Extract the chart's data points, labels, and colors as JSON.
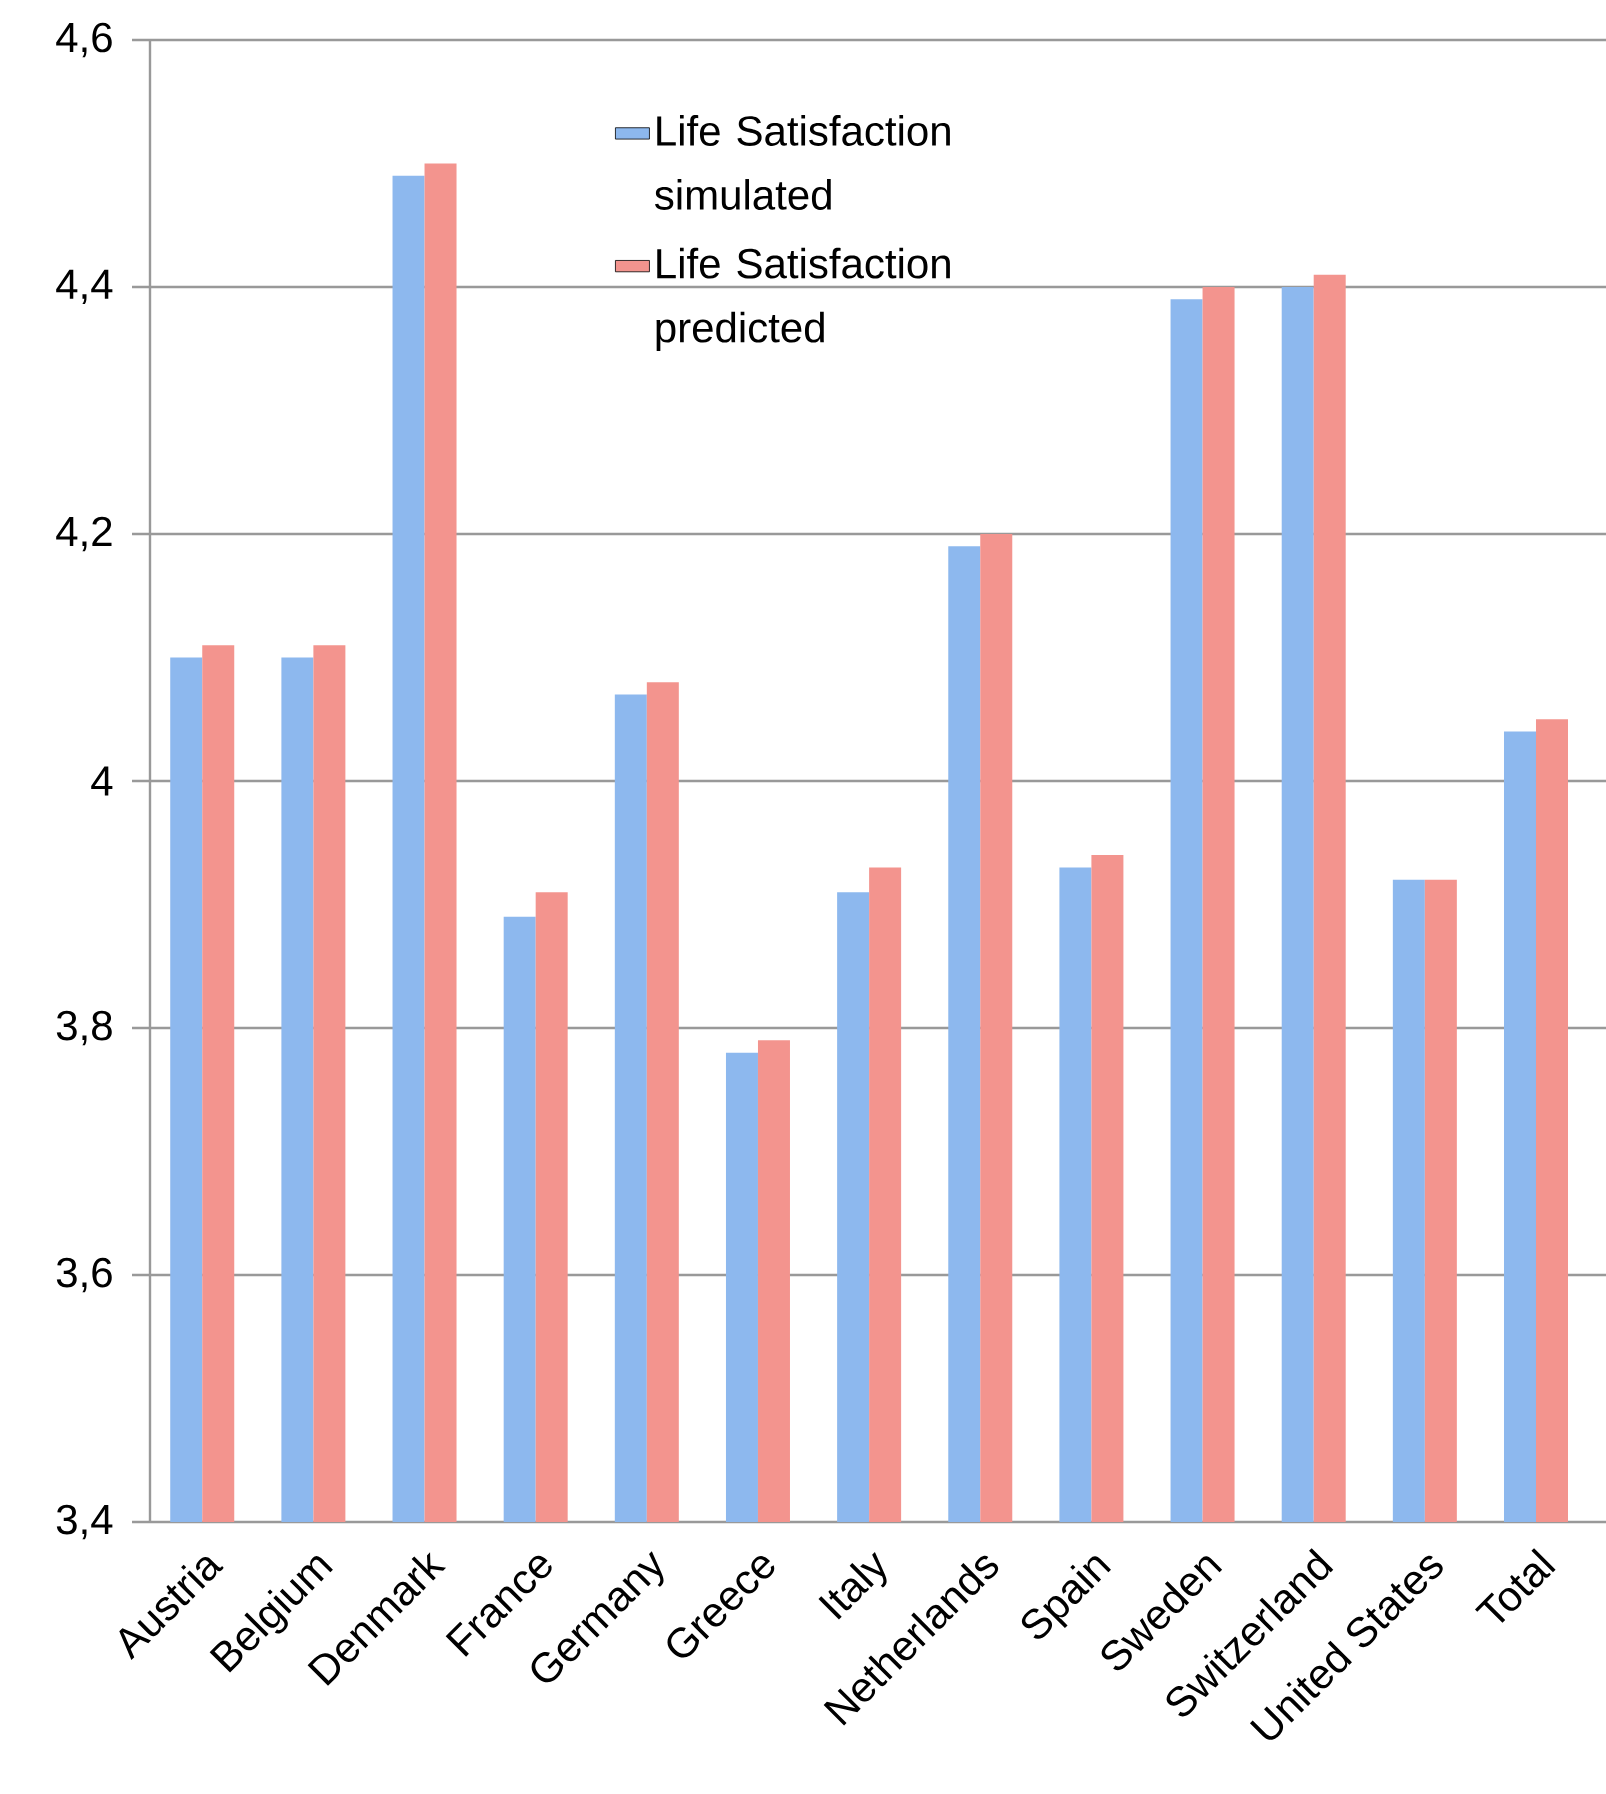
{
  "chart_data": {
    "type": "bar",
    "categories": [
      "Austria",
      "Belgium",
      "Denmark",
      "France",
      "Germany",
      "Greece",
      "Italy",
      "Netherlands",
      "Spain",
      "Sweden",
      "Switzerland",
      "United States",
      "Total"
    ],
    "series": [
      {
        "name": "Life Satisfaction simulated",
        "color": "#8db8ee",
        "values": [
          4.1,
          4.1,
          4.49,
          3.89,
          4.07,
          3.78,
          3.91,
          4.19,
          3.93,
          4.39,
          4.4,
          3.92,
          4.04
        ]
      },
      {
        "name": "Life Satisfaction predicted",
        "color": "#f3948e",
        "values": [
          4.11,
          4.11,
          4.5,
          3.91,
          4.08,
          3.79,
          3.93,
          4.2,
          3.94,
          4.4,
          4.41,
          3.92,
          4.05
        ]
      }
    ],
    "ylim": [
      3.4,
      4.6
    ],
    "yticks": [
      {
        "value": 3.4,
        "label": "3,4"
      },
      {
        "value": 3.6,
        "label": "3,6"
      },
      {
        "value": 3.8,
        "label": "3,8"
      },
      4,
      {
        "value": 4.2,
        "label": "4,2"
      },
      {
        "value": 4.4,
        "label": "4,4"
      },
      {
        "value": 4.6,
        "label": "4,6"
      }
    ],
    "grid": "y",
    "legend": "top"
  }
}
